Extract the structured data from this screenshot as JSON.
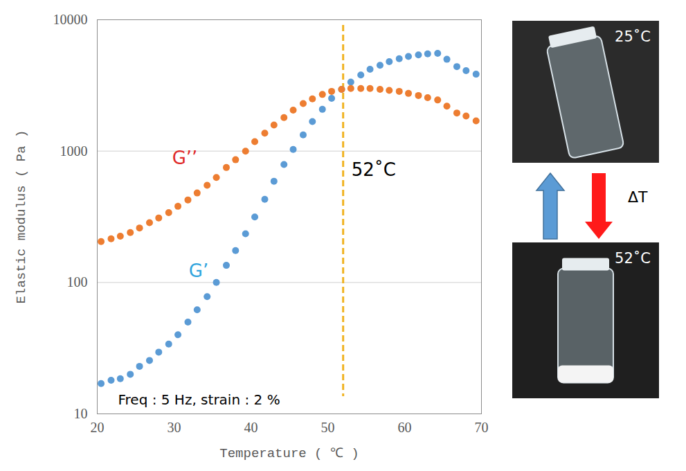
{
  "chart_data": {
    "type": "scatter",
    "marker": "circle",
    "x_label": "Temperature ( ℃ )",
    "y_label": "Elastic modulus ( Pa )",
    "log": "y",
    "grid": true,
    "xlim": [
      20,
      70
    ],
    "ylim": [
      10,
      10000
    ],
    "xticks": [
      20,
      30,
      40,
      50,
      60,
      70
    ],
    "yticks": [
      10,
      100,
      1000,
      10000
    ],
    "x": [
      20.5,
      21.8,
      23.0,
      24.3,
      25.5,
      26.8,
      28.0,
      29.3,
      30.5,
      31.8,
      33.0,
      34.3,
      35.5,
      36.8,
      38.0,
      39.3,
      40.5,
      41.8,
      43.0,
      44.3,
      45.5,
      46.8,
      48.0,
      49.3,
      50.5,
      51.8,
      53.0,
      54.3,
      55.5,
      56.8,
      58.0,
      59.3,
      60.5,
      61.8,
      63.0,
      64.3,
      65.5,
      66.8,
      68.0,
      69.3
    ],
    "series": [
      {
        "name": "G’",
        "color": "#5b9bd5",
        "values": [
          17,
          18,
          18.5,
          20,
          23,
          25.5,
          29.5,
          34,
          40,
          50,
          62,
          78,
          100,
          135,
          175,
          235,
          315,
          430,
          590,
          790,
          1030,
          1330,
          1680,
          2080,
          2520,
          2950,
          3350,
          3800,
          4200,
          4500,
          4800,
          5050,
          5250,
          5400,
          5500,
          5550,
          5000,
          4400,
          4100,
          3850
        ]
      },
      {
        "name": "G’’",
        "color": "#ed7d31",
        "values": [
          205,
          215,
          225,
          240,
          260,
          285,
          310,
          340,
          380,
          425,
          480,
          550,
          630,
          750,
          860,
          1000,
          1180,
          1370,
          1580,
          1800,
          2050,
          2300,
          2500,
          2700,
          2850,
          2950,
          3000,
          3000,
          3000,
          2950,
          2900,
          2850,
          2750,
          2650,
          2550,
          2450,
          2200,
          1950,
          1850,
          1700
        ]
      }
    ],
    "annotations": [
      {
        "text": "52˚C",
        "x": 52,
        "line_style": "dashed",
        "color": "#f0b323"
      },
      {
        "text": "Freq : 5 Hz, strain : 2 %"
      }
    ]
  },
  "photos": {
    "labels": [
      "25˚C",
      "52˚C"
    ],
    "arrow_label": "ΔT"
  }
}
